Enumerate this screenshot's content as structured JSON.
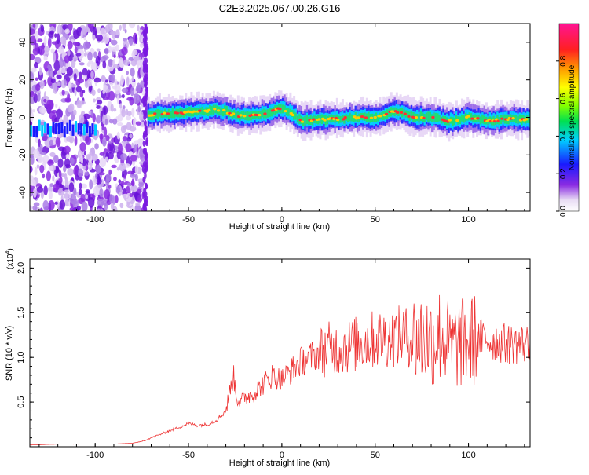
{
  "title": "C2E3.2025.067.00.26.G16",
  "chart_data": [
    {
      "type": "heatmap",
      "xlabel": "Height of straight line (km)",
      "ylabel": "Frequency (Hz)",
      "xlim": [
        -135,
        133
      ],
      "ylim": [
        -50,
        50
      ],
      "x_ticks": [
        -100,
        -50,
        0,
        50,
        100
      ],
      "y_ticks": [
        -40,
        -20,
        0,
        20,
        40
      ],
      "x_tick_labels": [
        "-100",
        "-50",
        "0",
        "50",
        "100"
      ],
      "y_tick_labels": [
        "-40",
        "-20",
        "0",
        "20",
        "40"
      ],
      "colorbar": {
        "label": "Normalized spectral amplitude",
        "range": [
          0,
          1
        ],
        "ticks": [
          0,
          0.2,
          0.4,
          0.6,
          0.8
        ],
        "tick_labels": [
          "0.0",
          "0.2",
          "0.4",
          "0.6",
          "0.8"
        ]
      },
      "ridge_series": {
        "x": [
          -72,
          -65,
          -55,
          -45,
          -35,
          -30,
          -25,
          -20,
          -10,
          0,
          5,
          10,
          20,
          30,
          40,
          50,
          60,
          65,
          70,
          80,
          90,
          95,
          100,
          110,
          120,
          133
        ],
        "y": [
          1,
          2,
          2,
          3,
          4,
          3,
          1,
          1,
          2,
          5,
          2,
          -2,
          -1,
          -1,
          0,
          0,
          3,
          2,
          0,
          0,
          -2,
          -1,
          0,
          -2,
          -1,
          -1
        ]
      },
      "noisy_region_x": [
        -135,
        -73
      ]
    },
    {
      "type": "line",
      "xlabel": "Height of straight line (km)",
      "ylabel": "SNR (10 * v/v)",
      "y_scale_note": "(x10",
      "y_scale_exp": "4",
      "y_scale_close": ")",
      "xlim": [
        -135,
        133
      ],
      "ylim": [
        0,
        2.1
      ],
      "x_ticks": [
        -100,
        -50,
        0,
        50,
        100
      ],
      "y_ticks": [
        0.5,
        1.0,
        1.5,
        2.0
      ],
      "x_tick_labels": [
        "-100",
        "-50",
        "0",
        "50",
        "100"
      ],
      "y_tick_labels": [
        "0.5",
        "1.0",
        "1.5",
        "2.0"
      ],
      "color": "#ee3333",
      "series": [
        {
          "x": [
            -135,
            -120,
            -100,
            -90,
            -80,
            -75,
            -70,
            -65,
            -60,
            -55,
            -50,
            -45,
            -40,
            -35,
            -30,
            -28,
            -26,
            -24,
            -22,
            -20,
            -15,
            -10,
            -5,
            0,
            5,
            10,
            15,
            20,
            25,
            30,
            35,
            40,
            45,
            50,
            55,
            60,
            65,
            70,
            75,
            80,
            85,
            88,
            90,
            95,
            100,
            105,
            110,
            115,
            120,
            125,
            133
          ],
          "y": [
            0.02,
            0.03,
            0.03,
            0.03,
            0.04,
            0.06,
            0.1,
            0.14,
            0.18,
            0.22,
            0.26,
            0.24,
            0.25,
            0.3,
            0.4,
            0.6,
            0.8,
            0.55,
            0.5,
            0.55,
            0.6,
            0.7,
            0.8,
            0.75,
            0.85,
            0.95,
            1.0,
            1.05,
            1.1,
            1.1,
            1.12,
            1.15,
            1.18,
            1.2,
            1.22,
            1.22,
            1.25,
            1.2,
            1.22,
            1.2,
            1.25,
            1.2,
            1.1,
            1.15,
            1.18,
            1.2,
            1.2,
            1.18,
            1.15,
            1.15,
            1.15
          ]
        }
      ]
    }
  ]
}
